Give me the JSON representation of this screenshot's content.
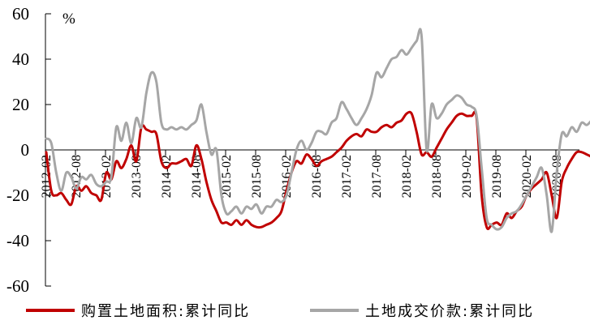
{
  "chart_data": {
    "type": "line",
    "title": "",
    "unit_label": "%",
    "xlabel": "",
    "ylabel": "%",
    "ylim": [
      -60,
      60
    ],
    "yticks": [
      60,
      40,
      20,
      0,
      -20,
      -40,
      -60
    ],
    "x_tick_labels": [
      "2012-02",
      "2012-08",
      "2013-02",
      "2013-08",
      "2014-02",
      "2014-08",
      "2015-02",
      "2015-08",
      "2016-02",
      "2016-08",
      "2017-02",
      "2017-08",
      "2018-02",
      "2018-08",
      "2019-02",
      "2019-08",
      "2020-02",
      "2020-08"
    ],
    "x_start": "2012-02",
    "x_end": "2020-12",
    "frequency": "monthly",
    "grid": false,
    "legend_position": "bottom",
    "series": [
      {
        "name": "购置土地面积:累计同比",
        "color": "#C00000",
        "values": [
          -1,
          -18,
          -20,
          -19,
          -22,
          -24,
          -16,
          -18,
          -16,
          -19,
          -20,
          -22,
          -10,
          -13,
          -5,
          -8,
          -4,
          2,
          -5,
          10,
          9,
          8,
          7,
          -5,
          -8,
          -6,
          -6,
          -5,
          -4,
          -7,
          2,
          -4,
          -14,
          -22,
          -27,
          -32,
          -32,
          -33,
          -31,
          -33,
          -31,
          -33,
          -34,
          -34,
          -33,
          -32,
          -30,
          -27,
          -18,
          -10,
          -5,
          -6,
          -2,
          -4,
          -7,
          -5,
          -4,
          -3,
          -1,
          1,
          4,
          6,
          7,
          6,
          9,
          8,
          8,
          10,
          11,
          10,
          12,
          13,
          16,
          16,
          8,
          -2,
          -1,
          -3,
          1,
          5,
          9,
          12,
          15,
          16,
          15,
          15,
          14,
          -20,
          -34,
          -33,
          -32,
          -33,
          -28,
          -30,
          -27,
          -25,
          -20,
          -17,
          -15,
          -13,
          -10,
          -20,
          -30,
          -14,
          -8,
          -4,
          -1,
          -1,
          -2,
          -3,
          -3,
          -3,
          -5,
          -1
        ]
      },
      {
        "name": "土地成交价款:累计同比",
        "color": "#A6A6A6",
        "values": [
          5,
          3,
          -10,
          -18,
          -10,
          -12,
          -17,
          -12,
          -13,
          -11,
          -15,
          -16,
          -14,
          -12,
          10,
          4,
          12,
          3,
          14,
          10,
          25,
          34,
          30,
          12,
          9,
          10,
          9,
          10,
          9,
          11,
          13,
          20,
          8,
          -2,
          0,
          -20,
          -28,
          -27,
          -25,
          -28,
          -25,
          -26,
          -24,
          -28,
          -25,
          -25,
          -22,
          -23,
          -20,
          -10,
          0,
          4,
          0,
          3,
          8,
          8,
          7,
          12,
          14,
          21,
          18,
          14,
          11,
          14,
          18,
          24,
          34,
          32,
          36,
          40,
          41,
          44,
          42,
          45,
          48,
          50,
          0,
          20,
          14,
          16,
          20,
          22,
          24,
          23,
          20,
          19,
          15,
          -8,
          -30,
          -33,
          -35,
          -34,
          -30,
          -28,
          -27,
          -24,
          -20,
          -16,
          -12,
          -8,
          -20,
          -36,
          -10,
          7,
          6,
          10,
          8,
          12,
          11,
          13,
          14,
          15,
          16,
          17
        ]
      }
    ]
  },
  "legend": {
    "items": [
      {
        "label": "购置土地面积:累计同比",
        "color": "#C00000"
      },
      {
        "label": "土地成交价款:累计同比",
        "color": "#A6A6A6"
      }
    ]
  }
}
